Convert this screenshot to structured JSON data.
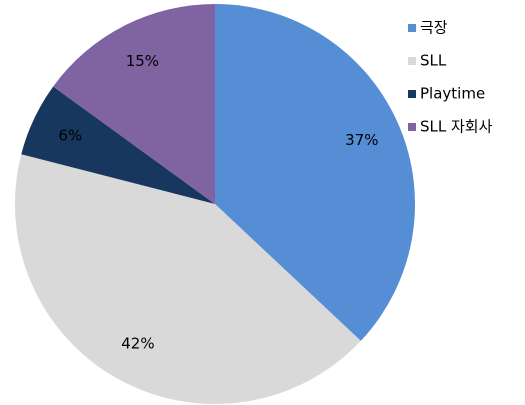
{
  "chart_data": {
    "type": "pie",
    "categories": [
      "극장",
      "SLL",
      "Playtime",
      "SLL 자회사"
    ],
    "values": [
      37,
      42,
      6,
      15
    ],
    "value_labels": [
      "37%",
      "42%",
      "6%",
      "15%"
    ],
    "colors": [
      "#558ed5",
      "#d9d9d9",
      "#17375e",
      "#8064a2"
    ],
    "legend": "top-right"
  }
}
